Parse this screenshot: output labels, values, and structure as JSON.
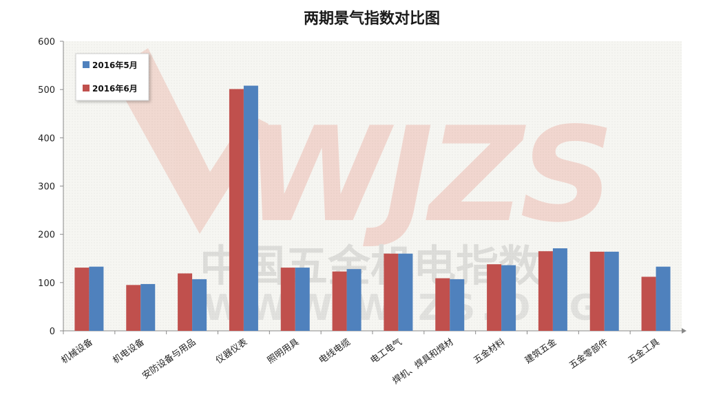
{
  "watermark": {
    "letters": "WJZS",
    "chinese": "中国五金机电指数",
    "url": "WWW.WJZS.ORG"
  },
  "chart_data": {
    "type": "bar",
    "title": "两期景气指数对比图",
    "xlabel": "",
    "ylabel": "",
    "ylim": [
      0,
      600
    ],
    "yticks": [
      0,
      100,
      200,
      300,
      400,
      500,
      600
    ],
    "grid": false,
    "legend_position": "top-left",
    "categories": [
      "机械设备",
      "机电设备",
      "安防设备与用品",
      "仪器仪表",
      "照明用具",
      "电线电缆",
      "电工电气",
      "焊机、焊具和焊材",
      "五金材料",
      "建筑五金",
      "五金零部件",
      "五金工具"
    ],
    "series": [
      {
        "name": "2016年6月",
        "color": "#c0504d",
        "values": [
          131,
          95,
          119,
          501,
          131,
          123,
          160,
          109,
          138,
          165,
          164,
          112
        ]
      },
      {
        "name": "2016年5月",
        "color": "#4f81bd",
        "values": [
          133,
          97,
          107,
          508,
          131,
          128,
          160,
          107,
          136,
          171,
          164,
          133
        ]
      }
    ],
    "legend_order": [
      "2016年5月",
      "2016年6月"
    ]
  }
}
